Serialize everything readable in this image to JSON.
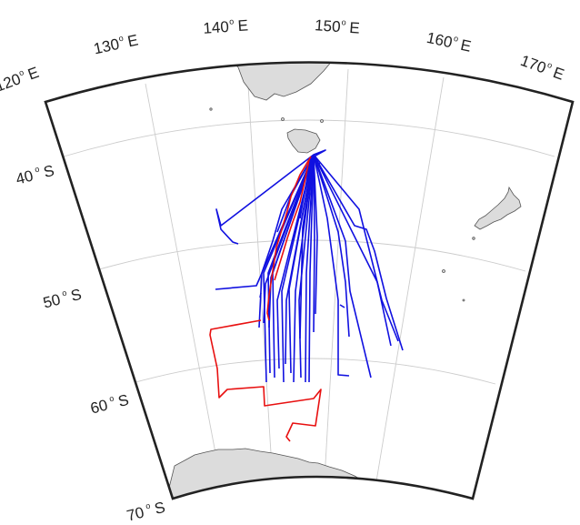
{
  "map": {
    "projection": "conic sector",
    "lon_range_E": [
      120,
      170
    ],
    "lat_range_S": [
      40,
      70
    ],
    "colors": {
      "frame": "#222222",
      "grid": "#cccccc",
      "land": "#dcdcdc",
      "coast": "#555555",
      "track_blue": "#1010e0",
      "track_red": "#e81010"
    },
    "lon_labels": [
      {
        "value": "120",
        "suffix": "E"
      },
      {
        "value": "130",
        "suffix": "E"
      },
      {
        "value": "140",
        "suffix": "E"
      },
      {
        "value": "150",
        "suffix": "E"
      },
      {
        "value": "160",
        "suffix": "E"
      },
      {
        "value": "170",
        "suffix": "E"
      }
    ],
    "lat_labels": [
      {
        "value": "40",
        "suffix": "S"
      },
      {
        "value": "50",
        "suffix": "S"
      },
      {
        "value": "60",
        "suffix": "S"
      },
      {
        "value": "70",
        "suffix": "S"
      }
    ],
    "degree_symbol": "o",
    "landmasses": [
      "Australia",
      "Tasmania",
      "New Zealand",
      "Antarctica"
    ],
    "track_groups": [
      {
        "color": "blue",
        "count": 30
      },
      {
        "color": "red",
        "count": 3
      }
    ]
  }
}
